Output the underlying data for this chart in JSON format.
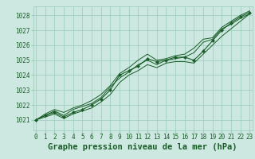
{
  "title": "Graphe pression niveau de la mer (hPa)",
  "xlabel_hours": [
    0,
    1,
    2,
    3,
    4,
    5,
    6,
    7,
    8,
    9,
    10,
    11,
    12,
    13,
    14,
    15,
    16,
    17,
    18,
    19,
    20,
    21,
    22,
    23
  ],
  "ylim": [
    1020.3,
    1028.6
  ],
  "xlim": [
    -0.3,
    23.3
  ],
  "yticks": [
    1021,
    1022,
    1023,
    1024,
    1025,
    1026,
    1027,
    1028
  ],
  "bg_color": "#cce8e0",
  "grid_color": "#99ccbb",
  "line_color": "#1a5c28",
  "marker_color": "#1a5c28",
  "title_bg_color": "#336633",
  "title_text_color": "#cceecc",
  "line1": [
    1021.0,
    1021.3,
    1021.5,
    1021.2,
    1021.5,
    1021.7,
    1022.0,
    1022.4,
    1023.0,
    1024.0,
    1024.3,
    1024.6,
    1025.1,
    1024.9,
    1025.0,
    1025.2,
    1025.2,
    1025.0,
    1025.6,
    1026.3,
    1027.0,
    1027.5,
    1027.9,
    1028.2
  ],
  "line2": [
    1021.0,
    1021.2,
    1021.4,
    1021.1,
    1021.4,
    1021.6,
    1021.8,
    1022.2,
    1022.7,
    1023.5,
    1024.0,
    1024.3,
    1024.7,
    1024.5,
    1024.8,
    1024.9,
    1024.9,
    1024.8,
    1025.4,
    1026.0,
    1026.6,
    1027.1,
    1027.6,
    1028.1
  ],
  "line3": [
    1021.0,
    1021.4,
    1021.7,
    1021.5,
    1021.8,
    1022.0,
    1022.3,
    1022.7,
    1023.3,
    1024.1,
    1024.5,
    1025.0,
    1025.4,
    1025.0,
    1025.1,
    1025.3,
    1025.4,
    1025.8,
    1026.4,
    1026.5,
    1027.2,
    1027.6,
    1028.0,
    1028.3
  ],
  "line4": [
    1021.0,
    1021.3,
    1021.6,
    1021.3,
    1021.7,
    1021.9,
    1022.1,
    1022.5,
    1023.2,
    1023.8,
    1024.2,
    1024.7,
    1025.0,
    1024.7,
    1025.0,
    1025.1,
    1025.2,
    1025.5,
    1026.2,
    1026.4,
    1027.1,
    1027.4,
    1027.8,
    1028.1
  ],
  "tick_fontsize": 5.5,
  "title_fontsize": 7.5,
  "font_family": "DejaVu Sans Mono"
}
